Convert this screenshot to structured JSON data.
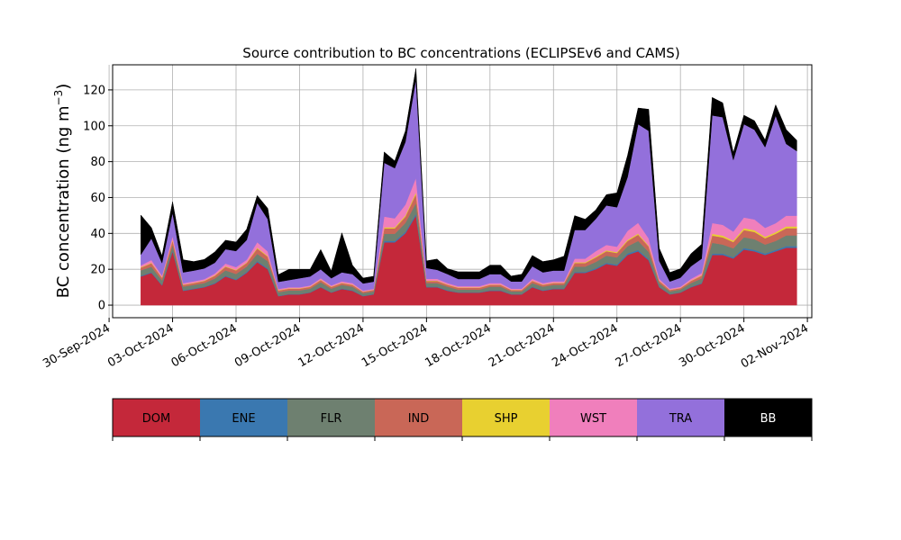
{
  "chart_data": {
    "type": "area",
    "stacked": true,
    "title": "Source contribution to BC concentrations (ECLIPSEv6 and CAMS)",
    "ylabel": "BC concentration (ng m",
    "ylabel_sup": "−3",
    "ylabel_close": ")",
    "ylim": [
      -7,
      134
    ],
    "yticks": [
      0,
      20,
      40,
      60,
      80,
      100,
      120
    ],
    "xlim": [
      "2024-09-30T04:00",
      "2024-11-02T05:00"
    ],
    "xticks": [
      "2024-09-30",
      "2024-10-03",
      "2024-10-06",
      "2024-10-09",
      "2024-10-12",
      "2024-10-15",
      "2024-10-18",
      "2024-10-21",
      "2024-10-24",
      "2024-10-27",
      "2024-10-30",
      "2024-11-02"
    ],
    "xtick_labels": [
      "30-Sep-2024",
      "03-Oct-2024",
      "06-Oct-2024",
      "09-Oct-2024",
      "12-Oct-2024",
      "15-Oct-2024",
      "18-Oct-2024",
      "21-Oct-2024",
      "24-Oct-2024",
      "27-Oct-2024",
      "30-Oct-2024",
      "02-Nov-2024"
    ],
    "grid": true,
    "x": [
      "2024-10-01T12:00",
      "2024-10-02T00:00",
      "2024-10-02T12:00",
      "2024-10-03T00:00",
      "2024-10-03T12:00",
      "2024-10-04T00:00",
      "2024-10-04T12:00",
      "2024-10-05T00:00",
      "2024-10-05T12:00",
      "2024-10-06T00:00",
      "2024-10-06T12:00",
      "2024-10-07T00:00",
      "2024-10-07T12:00",
      "2024-10-08T00:00",
      "2024-10-08T12:00",
      "2024-10-09T00:00",
      "2024-10-09T12:00",
      "2024-10-10T00:00",
      "2024-10-10T12:00",
      "2024-10-11T00:00",
      "2024-10-11T12:00",
      "2024-10-12T00:00",
      "2024-10-12T12:00",
      "2024-10-13T00:00",
      "2024-10-13T12:00",
      "2024-10-14T00:00",
      "2024-10-14T12:00",
      "2024-10-15T00:00",
      "2024-10-15T12:00",
      "2024-10-16T00:00",
      "2024-10-16T12:00",
      "2024-10-17T00:00",
      "2024-10-17T12:00",
      "2024-10-18T00:00",
      "2024-10-18T12:00",
      "2024-10-19T00:00",
      "2024-10-19T12:00",
      "2024-10-20T00:00",
      "2024-10-20T12:00",
      "2024-10-21T00:00",
      "2024-10-21T12:00",
      "2024-10-22T00:00",
      "2024-10-22T12:00",
      "2024-10-23T00:00",
      "2024-10-23T12:00",
      "2024-10-24T00:00",
      "2024-10-24T12:00",
      "2024-10-25T00:00",
      "2024-10-25T12:00",
      "2024-10-26T00:00",
      "2024-10-26T12:00",
      "2024-10-27T00:00",
      "2024-10-27T12:00",
      "2024-10-28T00:00",
      "2024-10-28T12:00",
      "2024-10-29T00:00",
      "2024-10-29T12:00",
      "2024-10-30T00:00",
      "2024-10-30T12:00",
      "2024-10-31T00:00",
      "2024-10-31T12:00",
      "2024-11-01T00:00",
      "2024-11-01T12:00"
    ],
    "series": [
      {
        "name": "DOM",
        "color": "#c4283a",
        "values": [
          16,
          18,
          11,
          30,
          8,
          9,
          10,
          12,
          16,
          14,
          18,
          24,
          20,
          5,
          6,
          6,
          7,
          10,
          7,
          9,
          8,
          5,
          6,
          35,
          35,
          40,
          50,
          10,
          10,
          8,
          7,
          7,
          7,
          8,
          8,
          6,
          6,
          10,
          8,
          9,
          9,
          18,
          18,
          20,
          23,
          22,
          28,
          30,
          25,
          10,
          6,
          7,
          10,
          12,
          28,
          28,
          26,
          31,
          30,
          28,
          30,
          32,
          32
        ]
      },
      {
        "name": "ENE",
        "color": "#3a78b0",
        "values": [
          0.4,
          0.4,
          0.3,
          0.6,
          0.3,
          0.3,
          0.3,
          0.4,
          0.4,
          0.4,
          0.5,
          0.6,
          0.5,
          0.2,
          0.2,
          0.2,
          0.2,
          0.3,
          0.2,
          0.3,
          0.3,
          0.2,
          0.2,
          0.8,
          0.8,
          0.8,
          1.0,
          0.3,
          0.3,
          0.3,
          0.2,
          0.2,
          0.2,
          0.3,
          0.3,
          0.2,
          0.2,
          0.3,
          0.3,
          0.3,
          0.3,
          0.5,
          0.5,
          0.6,
          0.6,
          0.6,
          0.8,
          0.8,
          0.7,
          0.3,
          0.2,
          0.2,
          0.3,
          0.4,
          0.8,
          0.8,
          0.7,
          0.9,
          0.8,
          0.8,
          0.8,
          0.9,
          0.9
        ]
      },
      {
        "name": "FLR",
        "color": "#6e8070",
        "values": [
          3,
          3,
          2.5,
          3,
          2,
          2,
          2,
          2.5,
          3,
          3,
          3,
          4,
          4,
          2,
          2,
          2,
          2,
          2.5,
          2,
          2,
          2,
          1.5,
          1.5,
          4,
          4,
          5,
          6,
          2,
          2,
          2,
          1.5,
          1.5,
          1.5,
          2,
          2,
          1.5,
          1.5,
          2,
          2,
          2,
          2,
          3,
          3,
          3.5,
          4,
          4,
          4,
          5,
          4,
          2,
          1.5,
          1.5,
          2,
          2.5,
          6,
          5,
          5,
          6,
          6,
          5,
          5,
          6,
          6
        ]
      },
      {
        "name": "IND",
        "color": "#c96757",
        "values": [
          1.5,
          2,
          1.5,
          2.5,
          1,
          1,
          1.2,
          1.5,
          2,
          2,
          2,
          3,
          2.5,
          1,
          1,
          1,
          1,
          1.2,
          1,
          1,
          1,
          0.8,
          0.8,
          3,
          3,
          3.5,
          5,
          1.2,
          1.2,
          1,
          1,
          1,
          1,
          1,
          1,
          0.8,
          0.8,
          1.2,
          1,
          1,
          1,
          2,
          2,
          2.5,
          2.5,
          2.5,
          3,
          3.5,
          3,
          1.2,
          0.8,
          0.8,
          1.2,
          1.5,
          4,
          4,
          3.5,
          4,
          4,
          3.5,
          4,
          4,
          4
        ]
      },
      {
        "name": "SHP",
        "color": "#e8d030",
        "values": [
          0.3,
          0.3,
          0.2,
          0.5,
          0.2,
          0.2,
          0.2,
          0.3,
          0.3,
          0.3,
          0.3,
          0.5,
          0.4,
          0.2,
          0.2,
          0.2,
          0.2,
          0.2,
          0.2,
          0.2,
          0.2,
          0.1,
          0.1,
          0.6,
          0.6,
          0.7,
          1.0,
          0.2,
          0.2,
          0.2,
          0.2,
          0.2,
          0.2,
          0.2,
          0.2,
          0.1,
          0.1,
          0.2,
          0.2,
          0.2,
          0.2,
          0.4,
          0.4,
          0.5,
          0.5,
          0.5,
          0.6,
          0.6,
          0.5,
          0.2,
          0.1,
          0.1,
          0.2,
          0.3,
          1.0,
          1.0,
          0.8,
          1.0,
          1.0,
          0.8,
          0.9,
          1.0,
          1.0
        ]
      },
      {
        "name": "WST",
        "color": "#f07fbc",
        "values": [
          1,
          1.5,
          1,
          2,
          0.8,
          0.8,
          0.8,
          1,
          1.5,
          1.5,
          1.5,
          3,
          2.5,
          0.6,
          0.6,
          0.6,
          0.6,
          0.8,
          0.6,
          0.8,
          0.8,
          0.5,
          0.5,
          6,
          5,
          6,
          8,
          1,
          1,
          0.8,
          0.7,
          0.7,
          0.7,
          0.8,
          0.8,
          0.6,
          0.6,
          1,
          0.8,
          0.8,
          0.8,
          2,
          2,
          3,
          3,
          3,
          5,
          6,
          4,
          1,
          0.6,
          0.7,
          1,
          1.2,
          6,
          6,
          5,
          6,
          6,
          5,
          5,
          6,
          6
        ]
      },
      {
        "name": "TRA",
        "color": "#9370db",
        "values": [
          6,
          12,
          7,
          13,
          6,
          6,
          6,
          6,
          8,
          9,
          11,
          22,
          18,
          4,
          4,
          5,
          5,
          5,
          4,
          5,
          5,
          4,
          4,
          30,
          28,
          35,
          55,
          6,
          5,
          5,
          4,
          4,
          4,
          5,
          5,
          4,
          4,
          7,
          6,
          6,
          6,
          16,
          16,
          18,
          22,
          22,
          30,
          55,
          60,
          10,
          4,
          5,
          7,
          8,
          60,
          60,
          40,
          52,
          50,
          45,
          60,
          40,
          36
        ]
      },
      {
        "name": "BB",
        "color": "#000000",
        "values": [
          22,
          6,
          4,
          6,
          7,
          5,
          5,
          6,
          5,
          5,
          6,
          4,
          6,
          4,
          6,
          5,
          4,
          11,
          4,
          22,
          5,
          3,
          3,
          6,
          4,
          6,
          6,
          4,
          6,
          3,
          4,
          4,
          4,
          5,
          5,
          3,
          4,
          6,
          6,
          6,
          8,
          8,
          6,
          5,
          6,
          8,
          12,
          9,
          12,
          7,
          5,
          5,
          7,
          8,
          10,
          8,
          4,
          5,
          5,
          4,
          6,
          8,
          6
        ]
      }
    ],
    "legend_placement": "bottom",
    "legend": {
      "entries": [
        {
          "name": "DOM",
          "color": "#c4283a",
          "text_color": "#000000"
        },
        {
          "name": "ENE",
          "color": "#3a78b0",
          "text_color": "#000000"
        },
        {
          "name": "FLR",
          "color": "#6e8070",
          "text_color": "#000000"
        },
        {
          "name": "IND",
          "color": "#c96757",
          "text_color": "#000000"
        },
        {
          "name": "SHP",
          "color": "#e8d030",
          "text_color": "#000000"
        },
        {
          "name": "WST",
          "color": "#f07fbc",
          "text_color": "#000000"
        },
        {
          "name": "TRA",
          "color": "#9370db",
          "text_color": "#000000"
        },
        {
          "name": "BB",
          "color": "#000000",
          "text_color": "#ffffff"
        }
      ]
    }
  }
}
